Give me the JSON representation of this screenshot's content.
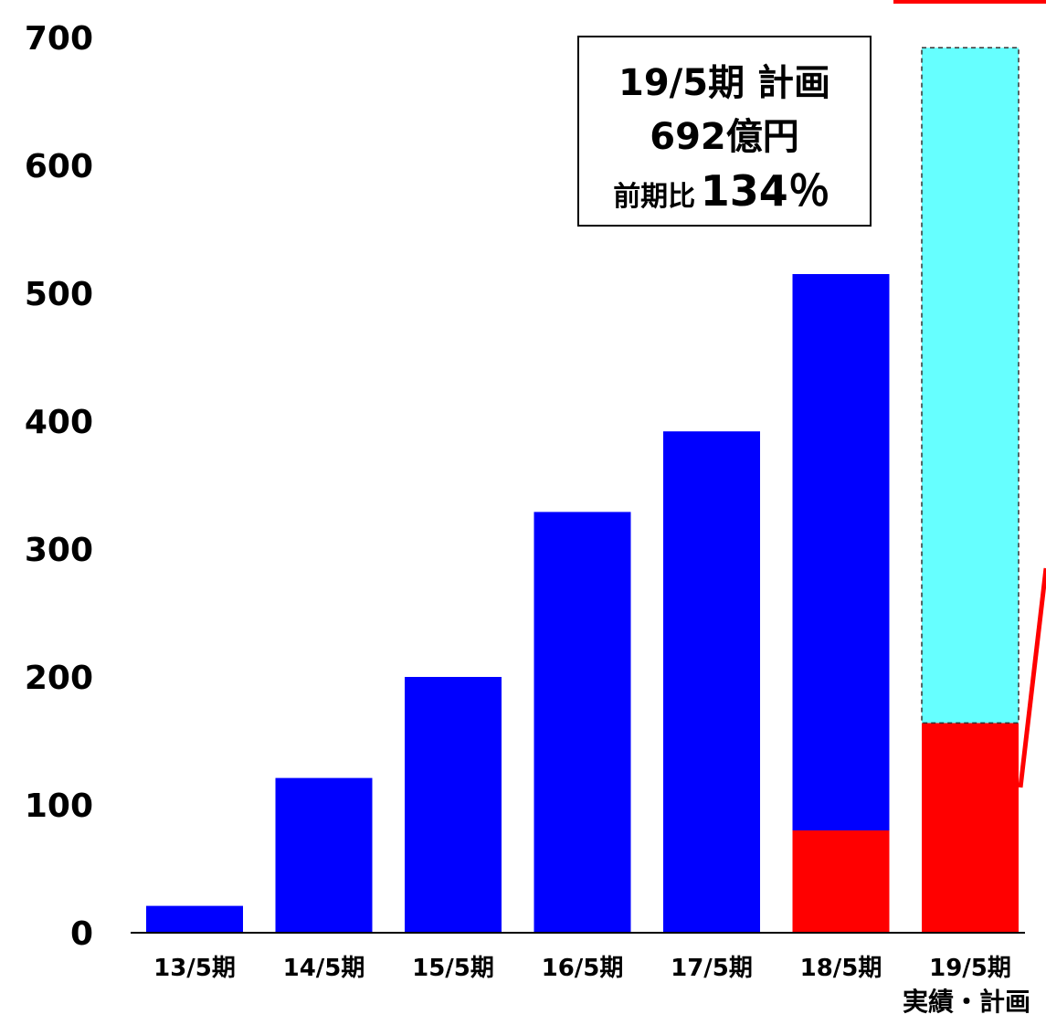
{
  "chart_data": {
    "type": "bar",
    "stacked": true,
    "categories": [
      "13/5期",
      "14/5期",
      "15/5期",
      "16/5期",
      "17/5期",
      "18/5期",
      "19/5期"
    ],
    "category_sublabel": {
      "category": "19/5期",
      "text": "実績・計画"
    },
    "series": [
      {
        "color": "#0000ff",
        "values": [
          21,
          121,
          200,
          329,
          392,
          435,
          0
        ]
      },
      {
        "color": "#ff0000",
        "values": [
          0,
          0,
          0,
          0,
          0,
          80,
          164
        ]
      },
      {
        "color": "#66ffff",
        "values": [
          0,
          0,
          0,
          0,
          0,
          0,
          528
        ],
        "dashed_border": true
      }
    ],
    "ylim": [
      0,
      700
    ],
    "yticks": [
      0,
      100,
      200,
      300,
      400,
      500,
      600,
      700
    ],
    "xlabel": "",
    "ylabel": "",
    "grid": false,
    "legend": "none",
    "annotation": {
      "line1": "19/5期 計画",
      "line2": "692億円",
      "line3_prefix": "前期比",
      "line3_value": "134％"
    }
  }
}
